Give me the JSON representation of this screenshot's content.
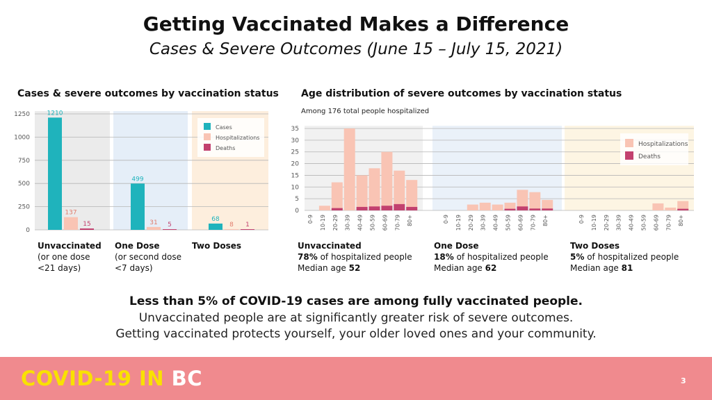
{
  "header": {
    "title": "Getting Vaccinated Makes a Difference",
    "subtitle": "Cases & Severe Outcomes (June 15 – July 15, 2021)"
  },
  "left_section": {
    "title": "Cases & severe outcomes by vaccination status",
    "panels": [
      {
        "title": "Unvaccinated",
        "sub1": "(or one dose",
        "sub2": "<21 days)"
      },
      {
        "title": "One Dose",
        "sub1": "(or second dose",
        "sub2": "<7 days)"
      },
      {
        "title": "Two Doses"
      }
    ]
  },
  "right_section": {
    "title": "Age distribution of severe outcomes by vaccination status",
    "note": "Among 176 total people hospitalized",
    "panels": [
      {
        "title": "Unvaccinated",
        "pct": "78%",
        "pct_text": "of hospitalized people",
        "median_label": "Median age",
        "median": "52"
      },
      {
        "title": "One Dose",
        "pct": "18%",
        "pct_text": "of hospitalized people",
        "median_label": "Median age",
        "median": "62"
      },
      {
        "title": "Two Doses",
        "pct": "5%",
        "pct_text": "of hospitalized people",
        "median_label": "Median age",
        "median": "81"
      }
    ]
  },
  "bottom": {
    "line1": "Less than 5% of COVID-19 cases are among fully vaccinated people.",
    "line2": "Unvaccinated people are at significantly greater risk of severe outcomes.",
    "line3": "Getting vaccinated protects yourself, your older loved ones and your community."
  },
  "footer": {
    "brand_a": "COVID-19 IN",
    "brand_b": "BC",
    "page": "3"
  },
  "colors": {
    "cases": "#1fb3bc",
    "hospitalizations": "#f9c4b4",
    "deaths": "#c2416f",
    "footer": "#f08a8e",
    "brand": "#f9e100"
  },
  "chart_data": [
    {
      "type": "bar",
      "title": "Cases & severe outcomes by vaccination status",
      "ylim": [
        0,
        1250
      ],
      "yticks": [
        0,
        250,
        500,
        750,
        1000,
        1250
      ],
      "ytick_labels": [
        "0",
        "250",
        "500",
        "750",
        "1000",
        "1250"
      ],
      "panels": [
        "Unvaccinated",
        "One Dose",
        "Two Doses"
      ],
      "legend": [
        "Cases",
        "Hospitalizations",
        "Deaths"
      ],
      "legend_position": "top-right of third panel",
      "series": [
        {
          "name": "Cases",
          "values": [
            1210,
            499,
            68
          ],
          "labels": [
            "1210",
            "499",
            "68"
          ]
        },
        {
          "name": "Hospitalizations",
          "values": [
            137,
            31,
            8
          ],
          "labels": [
            "137",
            "31",
            "8"
          ]
        },
        {
          "name": "Deaths",
          "values": [
            15,
            5,
            1
          ],
          "labels": [
            "15",
            "5",
            "1"
          ]
        }
      ]
    },
    {
      "type": "bar",
      "stacked": true,
      "title": "Age distribution of severe outcomes by vaccination status",
      "ylim": [
        0,
        35
      ],
      "yticks": [
        0,
        5,
        10,
        15,
        20,
        25,
        30,
        35
      ],
      "ytick_labels": [
        "0",
        "5",
        "10",
        "15",
        "20",
        "25",
        "30",
        "35"
      ],
      "categories": [
        "0-9",
        "10-19",
        "20-29",
        "30-39",
        "40-49",
        "50-59",
        "60-69",
        "70-79",
        "80+"
      ],
      "legend": [
        "Hospitalizations",
        "Deaths"
      ],
      "legend_position": "top-right of third panel",
      "panels": [
        {
          "name": "Unvaccinated",
          "hospitalizations": [
            0,
            2,
            12,
            35,
            15,
            18,
            25,
            17,
            13
          ],
          "deaths": [
            0,
            0,
            1,
            0,
            1.5,
            1.7,
            2,
            2.7,
            1.5
          ]
        },
        {
          "name": "One Dose",
          "hospitalizations": [
            0,
            0,
            2.5,
            3.3,
            2.5,
            3.3,
            8.8,
            7.8,
            4.5
          ],
          "deaths": [
            0,
            0,
            0,
            0,
            0,
            0.7,
            1.7,
            0.8,
            0.8
          ]
        },
        {
          "name": "Two Doses",
          "hospitalizations": [
            0,
            0,
            0,
            0,
            0,
            0,
            3,
            1.2,
            4
          ],
          "deaths": [
            0,
            0,
            0,
            0,
            0,
            0,
            0,
            0,
            0.7
          ]
        }
      ]
    }
  ]
}
